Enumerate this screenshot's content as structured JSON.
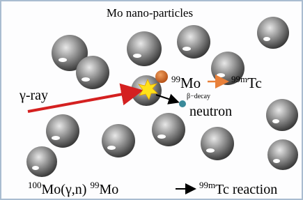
{
  "title": "Mo nano-particles",
  "beam_label": "γ-ray",
  "reaction": {
    "parent_mass": "99",
    "parent": "Mo",
    "decay_label": "β−decay",
    "daughter_mass": "99m",
    "daughter": "Tc"
  },
  "particle_label": "neutron",
  "equation": {
    "target_mass": "100",
    "target": "Mo(γ,n)",
    "product_mass": "99",
    "product": "Mo",
    "final_mass": "99m",
    "final": "Tc reaction"
  }
}
